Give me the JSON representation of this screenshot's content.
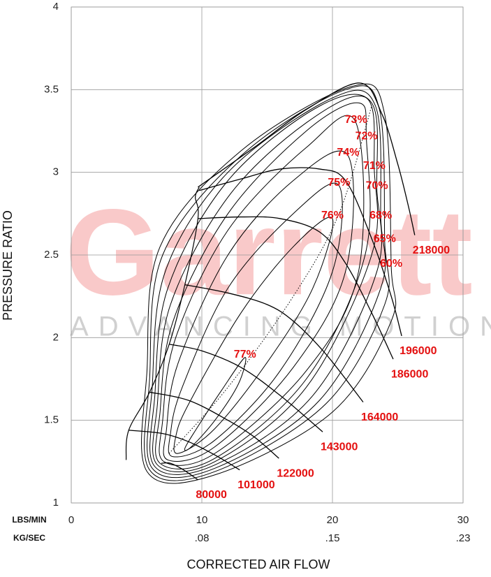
{
  "chart_data": {
    "type": "line",
    "watermark": "Garrett",
    "watermark_tagline": "ADVANCING MOTION",
    "x_label": "CORRECTED AIR FLOW",
    "y_label": "PRESSURE RATIO",
    "x_unit": "LBS/MIN",
    "x2_unit": "KG/SEC",
    "xlim": [
      0,
      30
    ],
    "ylim": [
      1,
      4
    ],
    "xticks": [
      0,
      10,
      20,
      30
    ],
    "x2ticks": [
      {
        "value": 10,
        "label": ".08"
      },
      {
        "value": 20,
        "label": ".15"
      },
      {
        "value": 30,
        "label": ".23"
      }
    ],
    "yticks": [
      1,
      1.5,
      2,
      2.5,
      3,
      3.5,
      4
    ],
    "grid": true,
    "line_color": "#000000",
    "label_color": "#e41010",
    "watermark_color": "#f9c9c9",
    "tagline_color": "#d0d0d0",
    "series": [
      {
        "name": "80000",
        "x": [
          6.9,
          7.6,
          8.6,
          9.7
        ],
        "values": [
          1.24,
          1.24,
          1.2,
          1.14
        ]
      },
      {
        "name": "101000",
        "x": [
          4.4,
          7,
          9,
          11,
          12.9
        ],
        "values": [
          1.44,
          1.42,
          1.37,
          1.29,
          1.2
        ]
      },
      {
        "name": "122000",
        "x": [
          6.0,
          9,
          12,
          14,
          15.9
        ],
        "values": [
          1.67,
          1.62,
          1.5,
          1.4,
          1.27
        ]
      },
      {
        "name": "143000",
        "x": [
          7.5,
          10,
          13,
          16,
          19.25
        ],
        "values": [
          1.96,
          1.92,
          1.82,
          1.65,
          1.43
        ]
      },
      {
        "name": "164000",
        "x": [
          8.7,
          12,
          15,
          17,
          19.5,
          22.35
        ],
        "values": [
          2.32,
          2.27,
          2.2,
          2.1,
          1.9,
          1.61
        ]
      },
      {
        "name": "186000",
        "x": [
          9.7,
          13,
          16,
          19,
          21,
          23,
          24.65
        ],
        "values": [
          2.72,
          2.73,
          2.72,
          2.64,
          2.45,
          2.15,
          1.87
        ]
      },
      {
        "name": "196000",
        "x": [
          9.8,
          13,
          16,
          19,
          21,
          23,
          24.5,
          25.3
        ],
        "values": [
          2.89,
          2.96,
          3.02,
          3.02,
          2.95,
          2.6,
          2.25,
          2.01
        ]
      },
      {
        "name": "218000",
        "x": [
          9.7,
          14,
          18,
          22.1,
          23.8,
          25,
          25.8,
          26.3
        ],
        "values": [
          2.91,
          3.15,
          3.38,
          3.54,
          3.35,
          3.05,
          2.8,
          2.62
        ]
      }
    ],
    "surge_line": {
      "x": [
        4.2,
        4.4,
        6.0,
        7.5,
        8.7,
        9.7,
        9.5,
        9.8
      ],
      "values": [
        1.26,
        1.44,
        1.67,
        1.96,
        2.32,
        2.72,
        2.85,
        2.91
      ]
    },
    "peak_line": {
      "x": [
        7.5,
        12,
        17,
        20.5,
        23
      ],
      "values": [
        1.3,
        1.7,
        2.25,
        2.75,
        3.4
      ]
    },
    "efficiency_islands": [
      {
        "name": "77%",
        "x": [
          13.3,
          11.5,
          9.6,
          8.7,
          9.2,
          11,
          12.8
        ],
        "values": [
          1.88,
          1.68,
          1.45,
          1.33,
          1.34,
          1.5,
          1.72
        ]
      },
      {
        "name": "76%",
        "x": [
          20.0,
          17,
          13,
          9,
          8,
          8.2,
          11,
          15,
          18.5
        ],
        "values": [
          2.72,
          2.55,
          2.15,
          1.6,
          1.4,
          1.3,
          1.45,
          1.85,
          2.3
        ]
      },
      {
        "name": "75%",
        "x": [
          20.5,
          17,
          12,
          8.5,
          7.6,
          7.8,
          11,
          16,
          20
        ],
        "values": [
          2.92,
          2.75,
          2.3,
          1.7,
          1.42,
          1.28,
          1.38,
          1.8,
          2.4
        ]
      },
      {
        "name": "74%",
        "x": [
          21.2,
          17,
          12,
          8.2,
          7.3,
          7.4,
          11,
          17,
          21
        ],
        "values": [
          3.1,
          2.95,
          2.5,
          1.85,
          1.45,
          1.26,
          1.34,
          1.82,
          2.4
        ]
      },
      {
        "name": "73%",
        "x": [
          21.8,
          18,
          12,
          8,
          7.0,
          7.1,
          11,
          18,
          22
        ],
        "values": [
          3.3,
          3.15,
          2.65,
          2.0,
          1.5,
          1.25,
          1.3,
          1.8,
          2.4
        ]
      },
      {
        "name": "72%",
        "x": [
          22.6,
          22,
          18,
          12,
          7.8,
          6.8,
          6.8,
          11,
          18,
          22.5
        ],
        "values": [
          3.2,
          3.42,
          3.25,
          2.75,
          2.1,
          1.55,
          1.24,
          1.27,
          1.75,
          2.5
        ]
      },
      {
        "name": "71%",
        "x": [
          23.2,
          22.6,
          18,
          12,
          7.6,
          6.6,
          6.6,
          11,
          18,
          23
        ],
        "values": [
          3.02,
          3.45,
          3.3,
          2.85,
          2.2,
          1.6,
          1.23,
          1.25,
          1.7,
          2.5
        ]
      },
      {
        "name": "70%",
        "x": [
          23.4,
          23,
          19,
          12,
          7.4,
          6.4,
          6.4,
          11,
          18.5,
          23.4
        ],
        "values": [
          2.9,
          3.42,
          3.4,
          2.95,
          2.3,
          1.65,
          1.22,
          1.23,
          1.65,
          2.4
        ]
      },
      {
        "name": "68%",
        "x": [
          23.7,
          23.3,
          20,
          12,
          7.2,
          6.2,
          6.2,
          11,
          19,
          23.7
        ],
        "values": [
          2.72,
          3.4,
          3.45,
          3.0,
          2.4,
          1.7,
          1.21,
          1.21,
          1.62,
          2.3
        ]
      },
      {
        "name": "65%",
        "x": [
          24.0,
          23.6,
          21,
          13,
          7.0,
          6.0,
          6.0,
          11,
          19.5,
          24
        ],
        "values": [
          2.58,
          3.38,
          3.5,
          3.1,
          2.5,
          1.75,
          1.2,
          1.19,
          1.6,
          2.2
        ]
      },
      {
        "name": "60%",
        "x": [
          24.5,
          24,
          21.5,
          13,
          6.8,
          5.8,
          5.8,
          11,
          20,
          24.5
        ],
        "values": [
          2.43,
          3.35,
          3.52,
          3.13,
          2.55,
          1.8,
          1.19,
          1.17,
          1.55,
          2.1
        ]
      }
    ]
  }
}
